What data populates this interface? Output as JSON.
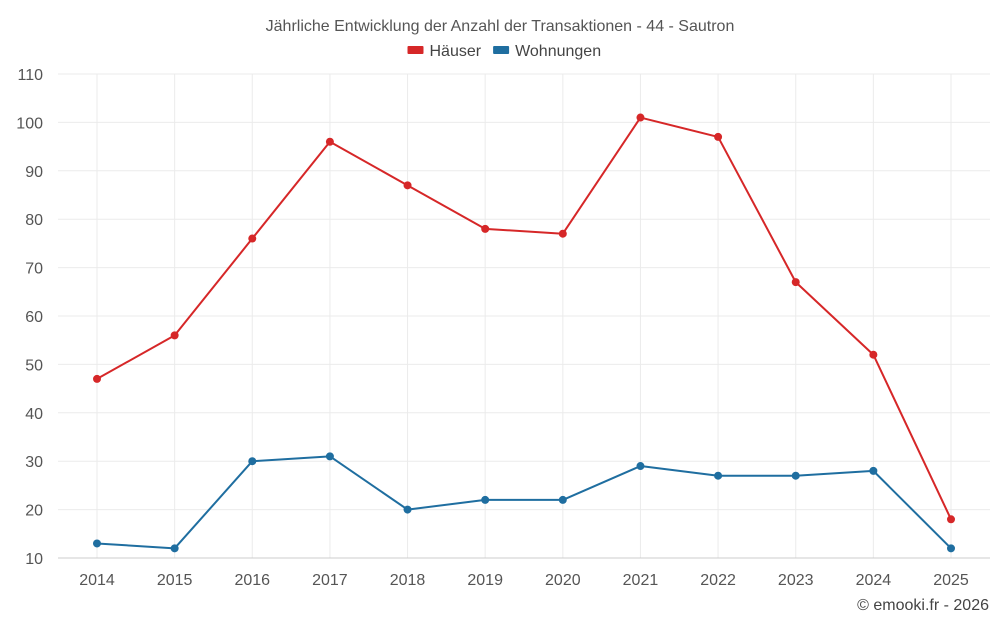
{
  "chart_data": {
    "type": "line",
    "title": "Jährliche Entwicklung der Anzahl der Transaktionen - 44 - Sautron",
    "xlabel": "",
    "ylabel": "",
    "categories": [
      "2014",
      "2015",
      "2016",
      "2017",
      "2018",
      "2019",
      "2020",
      "2021",
      "2022",
      "2023",
      "2024",
      "2025"
    ],
    "ylim": [
      10,
      110
    ],
    "yticks": [
      10,
      20,
      30,
      40,
      50,
      60,
      70,
      80,
      90,
      100,
      110
    ],
    "grid": true,
    "legend_position": "top-center",
    "series": [
      {
        "name": "Häuser",
        "color": "#d62728",
        "values": [
          47,
          56,
          76,
          96,
          87,
          78,
          77,
          101,
          97,
          67,
          52,
          18
        ]
      },
      {
        "name": "Wohnungen",
        "color": "#1f6ea0",
        "values": [
          13,
          12,
          30,
          31,
          20,
          22,
          22,
          29,
          27,
          27,
          28,
          12
        ]
      }
    ]
  },
  "credit": "© emooki.fr - 2026"
}
